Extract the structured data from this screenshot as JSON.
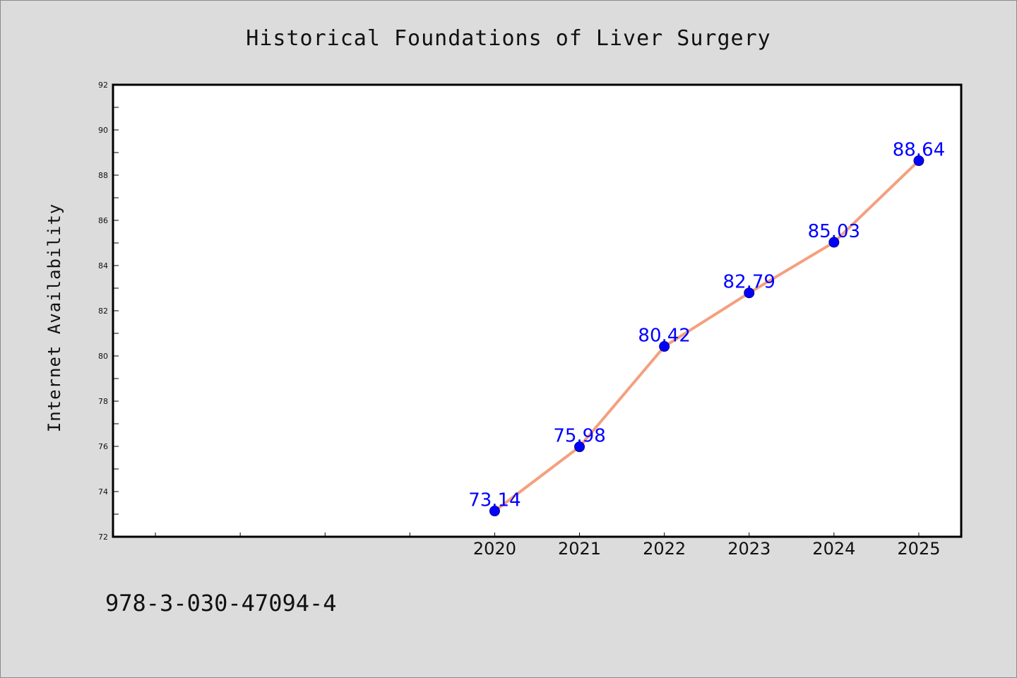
{
  "chart_data": {
    "type": "line",
    "title": "Historical Foundations of Liver Surgery",
    "xlabel": "",
    "ylabel": "Internet Availability",
    "x": [
      "2020",
      "2021",
      "2022",
      "2023",
      "2024",
      "2025"
    ],
    "series": [
      {
        "values": [
          73.14,
          75.98,
          80.42,
          82.79,
          85.03,
          88.64
        ],
        "labels": [
          "73.14",
          "75.98",
          "80.42",
          "82.79",
          "85.03",
          "88.64"
        ],
        "line_color": "#f4a07e",
        "marker_color": "#0000ff"
      }
    ],
    "ylim": [
      72,
      92
    ],
    "y_ticks": [
      "72",
      "74",
      "76",
      "78",
      "80",
      "82",
      "84",
      "86",
      "88",
      "90",
      "92"
    ],
    "x_domain": [
      2015.5,
      2025.5
    ],
    "x_minor_ticks": [
      2016,
      2017,
      2018,
      2019
    ],
    "grid": false,
    "legend": "none",
    "data_label_color": "#0000ff"
  },
  "footer": {
    "isbn": "978-3-030-47094-4"
  }
}
